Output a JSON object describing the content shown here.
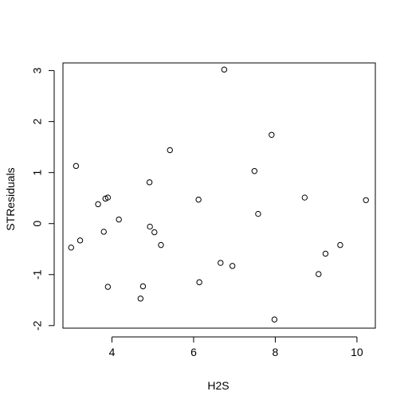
{
  "chart_data": {
    "type": "scatter",
    "title": "",
    "xlabel": "H2S",
    "ylabel": "STResiduals",
    "xlim": [
      2.8,
      10.45
    ],
    "ylim": [
      -2.05,
      3.15
    ],
    "xticks": [
      4,
      6,
      8,
      10
    ],
    "yticks": [
      -2,
      -1,
      0,
      1,
      2,
      3
    ],
    "xtick_labels": [
      "4",
      "6",
      "8",
      "10"
    ],
    "ytick_labels": [
      "-2",
      "-1",
      "0",
      "1",
      "2",
      "3"
    ],
    "grid": false,
    "legend": "none",
    "point_style": "open-circle",
    "colors": {
      "axis": "#000000",
      "points": "#000000",
      "background": "#ffffff"
    },
    "points": [
      {
        "x": 3.0,
        "y": -0.47
      },
      {
        "x": 3.12,
        "y": 1.13
      },
      {
        "x": 3.22,
        "y": -0.33
      },
      {
        "x": 3.66,
        "y": 0.38
      },
      {
        "x": 3.8,
        "y": -0.16
      },
      {
        "x": 3.84,
        "y": 0.49
      },
      {
        "x": 3.9,
        "y": 0.51
      },
      {
        "x": 3.9,
        "y": -1.24
      },
      {
        "x": 4.17,
        "y": 0.08
      },
      {
        "x": 4.7,
        "y": -1.47
      },
      {
        "x": 4.76,
        "y": -1.23
      },
      {
        "x": 4.92,
        "y": 0.81
      },
      {
        "x": 4.93,
        "y": -0.06
      },
      {
        "x": 5.04,
        "y": -0.17
      },
      {
        "x": 5.2,
        "y": -0.42
      },
      {
        "x": 5.42,
        "y": 1.44
      },
      {
        "x": 6.12,
        "y": 0.47
      },
      {
        "x": 6.14,
        "y": -1.15
      },
      {
        "x": 6.66,
        "y": -0.77
      },
      {
        "x": 6.75,
        "y": 3.02
      },
      {
        "x": 6.95,
        "y": -0.83
      },
      {
        "x": 7.49,
        "y": 1.03
      },
      {
        "x": 7.58,
        "y": 0.19
      },
      {
        "x": 7.91,
        "y": 1.74
      },
      {
        "x": 7.98,
        "y": -1.88
      },
      {
        "x": 8.72,
        "y": 0.51
      },
      {
        "x": 9.06,
        "y": -0.99
      },
      {
        "x": 9.23,
        "y": -0.59
      },
      {
        "x": 9.59,
        "y": -0.42
      },
      {
        "x": 10.22,
        "y": 0.46
      }
    ]
  }
}
